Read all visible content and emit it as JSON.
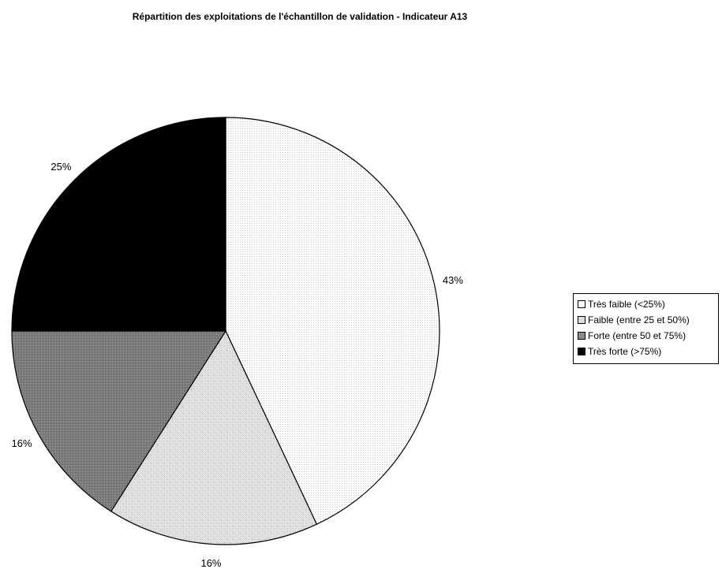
{
  "chart_data": {
    "type": "pie",
    "title": "Répartition des exploitations de l'échantillon de validation - Indicateur A13",
    "categories": [
      "Très faible (<25%)",
      "Faible (entre 25 et 50%)",
      "Forte (entre 50 et 75%)",
      "Très forte (>75%)"
    ],
    "values": [
      43,
      16,
      16,
      25
    ],
    "data_labels": [
      "43%",
      "16%",
      "16%",
      "25%"
    ],
    "colors": [
      "#f4f4f4",
      "#dcdcdc",
      "#8c8c8c",
      "#000000"
    ],
    "legend_position": "right"
  }
}
